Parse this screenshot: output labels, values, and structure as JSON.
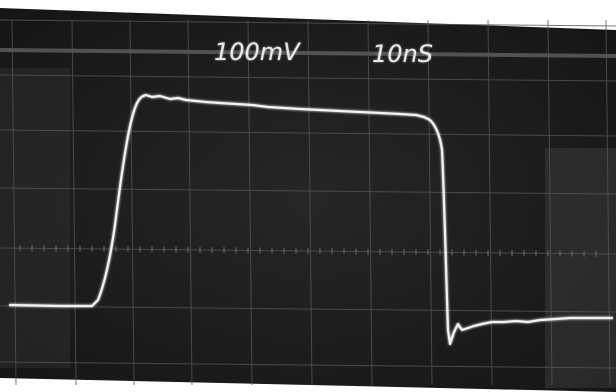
{
  "scope": {
    "volts_per_div": "100mV",
    "time_per_div": "10nS"
  },
  "colors": {
    "screen": "#1b1b1b",
    "graticule": "#5a5a5a",
    "trace": "#f2f2f2",
    "background": "#ffffff"
  }
}
